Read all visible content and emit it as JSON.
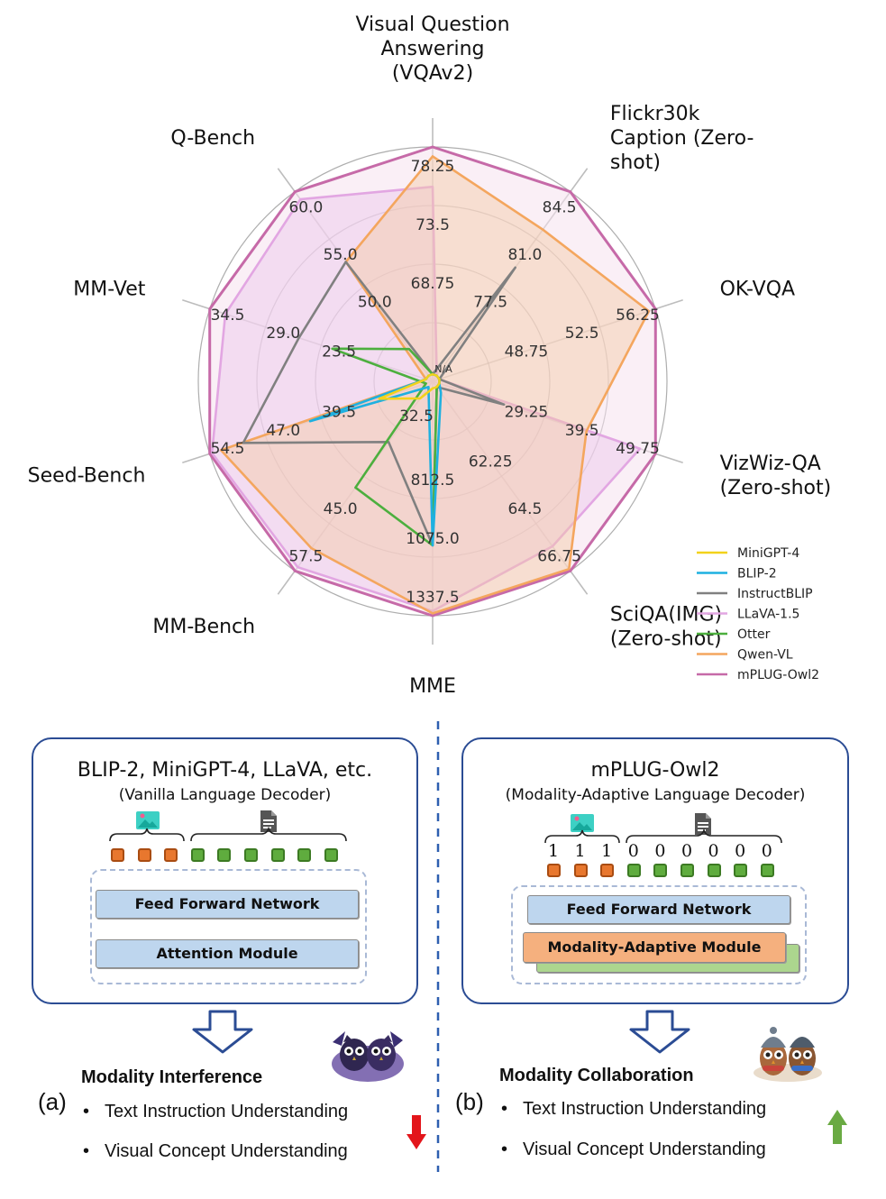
{
  "chart_data": {
    "type": "radar",
    "axes": [
      {
        "label": "Visual Question Answering (VQAv2)",
        "label_lines": [
          "Visual Question",
          "Answering",
          "(VQAv2)"
        ],
        "ticks": [
          "68.75",
          "73.5",
          "78.25"
        ]
      },
      {
        "label": "Flickr30k Caption (Zero-shot)",
        "label_lines": [
          "Flickr30k",
          "Caption (Zero-",
          "shot)"
        ],
        "ticks": [
          "77.5",
          "81.0",
          "84.5"
        ]
      },
      {
        "label": "OK-VQA",
        "label_lines": [
          "OK-VQA"
        ],
        "ticks": [
          "48.75",
          "52.5",
          "56.25"
        ]
      },
      {
        "label": "VizWiz-QA (Zero-shot)",
        "label_lines": [
          "VizWiz-QA",
          "(Zero-shot)"
        ],
        "ticks": [
          "29.25",
          "39.5",
          "49.75"
        ]
      },
      {
        "label": "SciQA(IMG) (Zero-shot)",
        "label_lines": [
          "SciQA(IMG)",
          "(Zero-shot)"
        ],
        "ticks": [
          "62.25",
          "64.5",
          "66.75"
        ]
      },
      {
        "label": "MME",
        "label_lines": [
          "MME"
        ],
        "ticks": [
          "812.5",
          "1075.0",
          "1337.5"
        ]
      },
      {
        "label": "MM-Bench",
        "label_lines": [
          "MM-Bench"
        ],
        "ticks": [
          "45.0",
          "57.5"
        ]
      },
      {
        "label": "Seed-Bench",
        "label_lines": [
          "Seed-Bench"
        ],
        "ticks": [
          "39.5",
          "47.0",
          "54.5"
        ]
      },
      {
        "label": "MM-Vet",
        "label_lines": [
          "MM-Vet"
        ],
        "ticks": [
          "23.5",
          "29.0",
          "34.5"
        ]
      },
      {
        "label": "Q-Bench",
        "label_lines": [
          "Q-Bench"
        ],
        "ticks": [
          "50.0",
          "55.0",
          "60.0"
        ]
      }
    ],
    "center_labels": [
      "N/A",
      "32.5"
    ],
    "series": [
      {
        "name": "MiniGPT-4",
        "color": "#f2d21b",
        "fill": "none",
        "values": [
          0.03,
          0.03,
          0.03,
          0.03,
          0.03,
          0.03,
          0.09,
          0.24,
          0.03,
          0.03
        ]
      },
      {
        "name": "BLIP-2",
        "color": "#1eb0e0",
        "fill": "none",
        "values": [
          0.03,
          0.03,
          0.03,
          0.03,
          0.06,
          0.7,
          0.03,
          0.55,
          0.03,
          0.03
        ]
      },
      {
        "name": "InstructBLIP",
        "color": "#808080",
        "fill": "none",
        "values": [
          0.03,
          0.6,
          0.03,
          0.32,
          0.03,
          0.7,
          0.32,
          0.85,
          0.6,
          0.63
        ]
      },
      {
        "name": "LLaVA-1.5",
        "color": "#e2a6e2",
        "fill": "#ecc6ec",
        "values": [
          0.83,
          0.03,
          0.03,
          0.93,
          0.87,
          0.98,
          0.98,
          0.99,
          0.93,
          0.96
        ]
      },
      {
        "name": "Otter",
        "color": "#4caf3e",
        "fill": "none",
        "values": [
          0.03,
          0.03,
          0.03,
          0.03,
          0.03,
          0.7,
          0.56,
          0.03,
          0.45,
          0.17
        ]
      },
      {
        "name": "Qwen-VL",
        "color": "#f4a65e",
        "fill": "#f5c9a5",
        "values": [
          0.96,
          0.8,
          0.97,
          0.69,
          0.99,
          0.99,
          0.88,
          0.95,
          0.03,
          0.63
        ]
      },
      {
        "name": "mPLUG-Owl2",
        "color": "#c66aa8",
        "fill": "#f6e2ee",
        "values": [
          1.0,
          1.0,
          1.0,
          1.0,
          1.0,
          1.0,
          1.0,
          1.0,
          1.0,
          1.0
        ]
      }
    ],
    "legend_position": "bottom-right",
    "grid": true
  },
  "left_panel": {
    "title": "BLIP-2, MiniGPT-4, LLaVA, etc.",
    "subtitle": "(Vanilla Language Decoder)",
    "ffn_label": "Feed Forward Network",
    "attention_label": "Attention Module",
    "image_icon": "image-icon",
    "doc_icon": "document-icon",
    "image_tokens": 3,
    "text_tokens": 6
  },
  "right_panel": {
    "title": "mPLUG-Owl2",
    "subtitle": "(Modality-Adaptive Language Decoder)",
    "ffn_label": "Feed Forward Network",
    "mam_label": "Modality-Adaptive Module",
    "image_icon": "image-icon",
    "doc_icon": "document-icon",
    "image_bits": [
      "1",
      "1",
      "1"
    ],
    "text_bits": [
      "0",
      "0",
      "0",
      "0",
      "0",
      "0"
    ]
  },
  "left_result": {
    "caption": "(a)",
    "heading": "Modality Interference",
    "bullets": [
      "Text Instruction Understanding",
      "Visual Concept Understanding"
    ],
    "bullet_char": "•",
    "arrow_icon": "down-arrow-icon",
    "arrow_color": "#e3151b",
    "mascot": "dark-owls-illustration"
  },
  "right_result": {
    "caption": "(b)",
    "heading": "Modality Collaboration",
    "bullets": [
      "Text Instruction Understanding",
      "Visual Concept Understanding"
    ],
    "bullet_char": "•",
    "arrow_icon": "up-arrow-icon",
    "arrow_color": "#6aaa43",
    "mascot": "friendly-owls-illustration"
  }
}
